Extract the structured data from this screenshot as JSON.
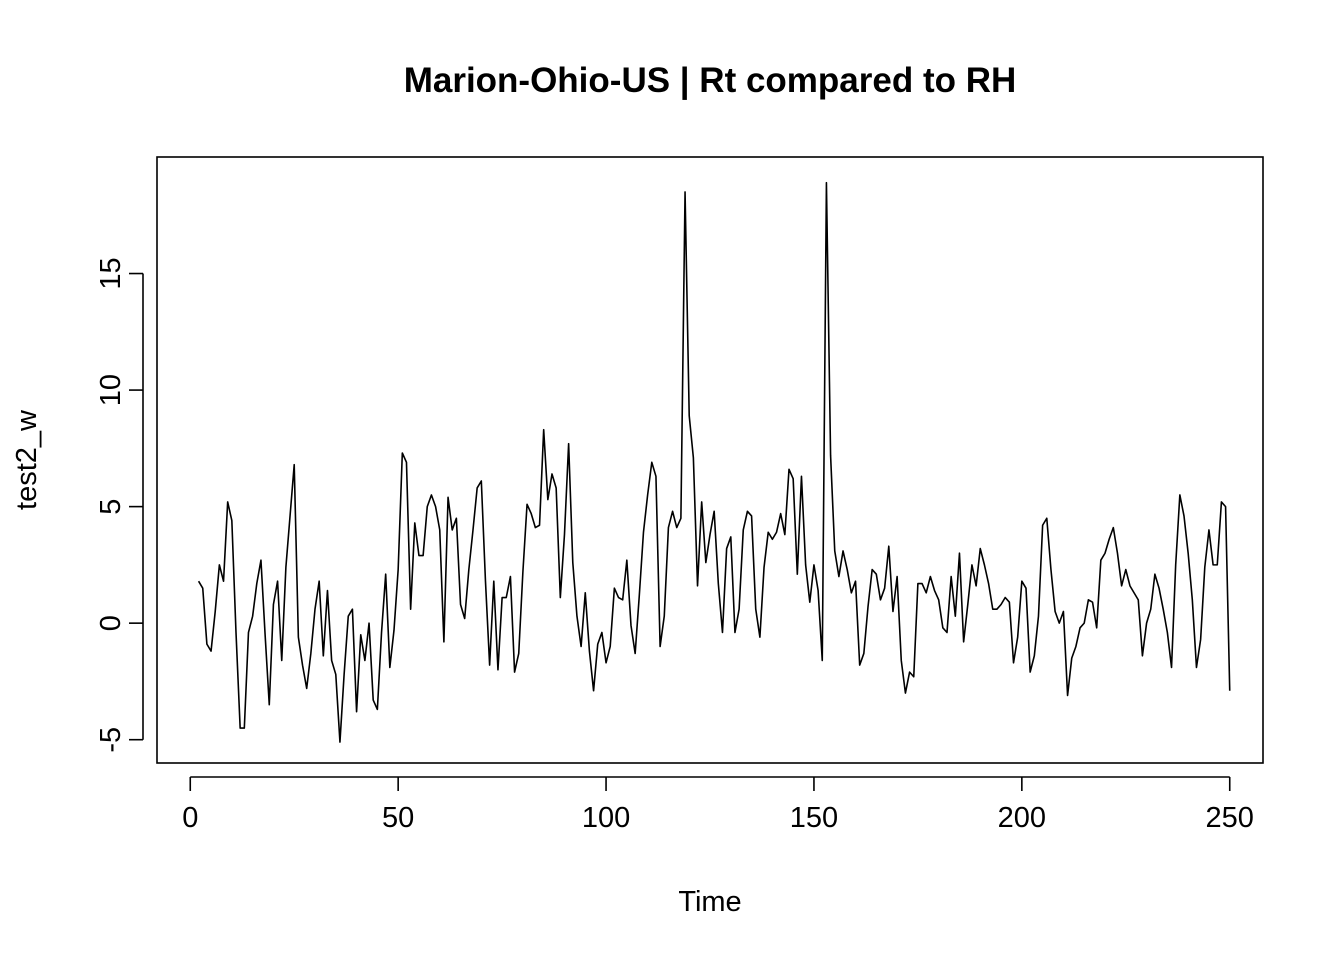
{
  "chart_data": {
    "type": "line",
    "title": "Marion-Ohio-US | Rt compared to RH",
    "xlabel": "Time",
    "ylabel": "test2_w",
    "xlim": [
      -8,
      258
    ],
    "ylim": [
      -6,
      20
    ],
    "xticks": [
      0,
      50,
      100,
      150,
      200,
      250
    ],
    "yticks": [
      -5,
      0,
      5,
      10,
      15
    ],
    "grid": false,
    "legend": false,
    "line_color": "#000000",
    "series": [
      {
        "x_start": 2,
        "values": [
          1.8,
          1.5,
          -0.9,
          -1.2,
          0.5,
          2.5,
          1.8,
          5.2,
          4.4,
          -0.4,
          -4.5,
          -4.5,
          -0.4,
          0.3,
          1.7,
          2.7,
          -0.5,
          -3.5,
          0.8,
          1.8,
          -1.6,
          2.4,
          4.6,
          6.8,
          -0.6,
          -1.8,
          -2.8,
          -1.3,
          0.6,
          1.8,
          -1.4,
          1.4,
          -1.6,
          -2.2,
          -5.1,
          -2.2,
          0.3,
          0.6,
          -3.8,
          -0.5,
          -1.6,
          0.0,
          -3.3,
          -3.7,
          -0.4,
          2.1,
          -1.9,
          -0.3,
          2.3,
          7.3,
          6.9,
          0.6,
          4.3,
          2.9,
          2.9,
          5.0,
          5.5,
          5.0,
          4.0,
          -0.8,
          5.4,
          4.0,
          4.5,
          0.8,
          0.2,
          2.3,
          4.0,
          5.8,
          6.1,
          1.8,
          -1.8,
          1.8,
          -2.0,
          1.1,
          1.1,
          2.0,
          -2.1,
          -1.3,
          2.2,
          5.1,
          4.7,
          4.1,
          4.2,
          8.3,
          5.3,
          6.4,
          5.8,
          1.1,
          3.8,
          7.7,
          2.6,
          0.3,
          -1.0,
          1.3,
          -1.2,
          -2.9,
          -0.9,
          -0.4,
          -1.7,
          -1.0,
          1.5,
          1.1,
          1.0,
          2.7,
          -0.1,
          -1.3,
          1.2,
          3.9,
          5.5,
          6.9,
          6.3,
          -1.0,
          0.3,
          4.1,
          4.8,
          4.1,
          4.5,
          18.5,
          8.9,
          7.1,
          1.6,
          5.2,
          2.6,
          3.8,
          4.8,
          1.7,
          -0.4,
          3.2,
          3.7,
          -0.4,
          0.6,
          4.0,
          4.8,
          4.6,
          0.6,
          -0.6,
          2.4,
          3.9,
          3.6,
          3.9,
          4.7,
          3.8,
          6.6,
          6.2,
          2.1,
          6.3,
          2.5,
          0.9,
          2.5,
          1.4,
          -1.6,
          18.9,
          7.2,
          3.1,
          2.0,
          3.1,
          2.3,
          1.3,
          1.8,
          -1.8,
          -1.3,
          0.7,
          2.3,
          2.1,
          1.0,
          1.5,
          3.3,
          0.5,
          2.0,
          -1.6,
          -3.0,
          -2.1,
          -2.3,
          1.7,
          1.7,
          1.3,
          2.0,
          1.4,
          1.0,
          -0.2,
          -0.4,
          2.0,
          0.3,
          3.0,
          -0.8,
          0.8,
          2.5,
          1.6,
          3.2,
          2.5,
          1.7,
          0.6,
          0.6,
          0.8,
          1.1,
          0.9,
          -1.7,
          -0.6,
          1.8,
          1.5,
          -2.1,
          -1.4,
          0.3,
          4.2,
          4.5,
          2.3,
          0.5,
          0.0,
          0.5,
          -3.1,
          -1.5,
          -1.0,
          -0.2,
          0.0,
          1.0,
          0.9,
          -0.2,
          2.7,
          3.0,
          3.6,
          4.1,
          3.0,
          1.6,
          2.3,
          1.6,
          1.3,
          1.0,
          -1.4,
          0.0,
          0.6,
          2.1,
          1.5,
          0.6,
          -0.4,
          -1.9,
          2.5,
          5.5,
          4.6,
          3.0,
          1.0,
          -1.9,
          -0.7,
          2.4,
          4.0,
          2.5,
          2.5,
          5.2,
          5.0,
          -2.9
        ]
      }
    ]
  }
}
